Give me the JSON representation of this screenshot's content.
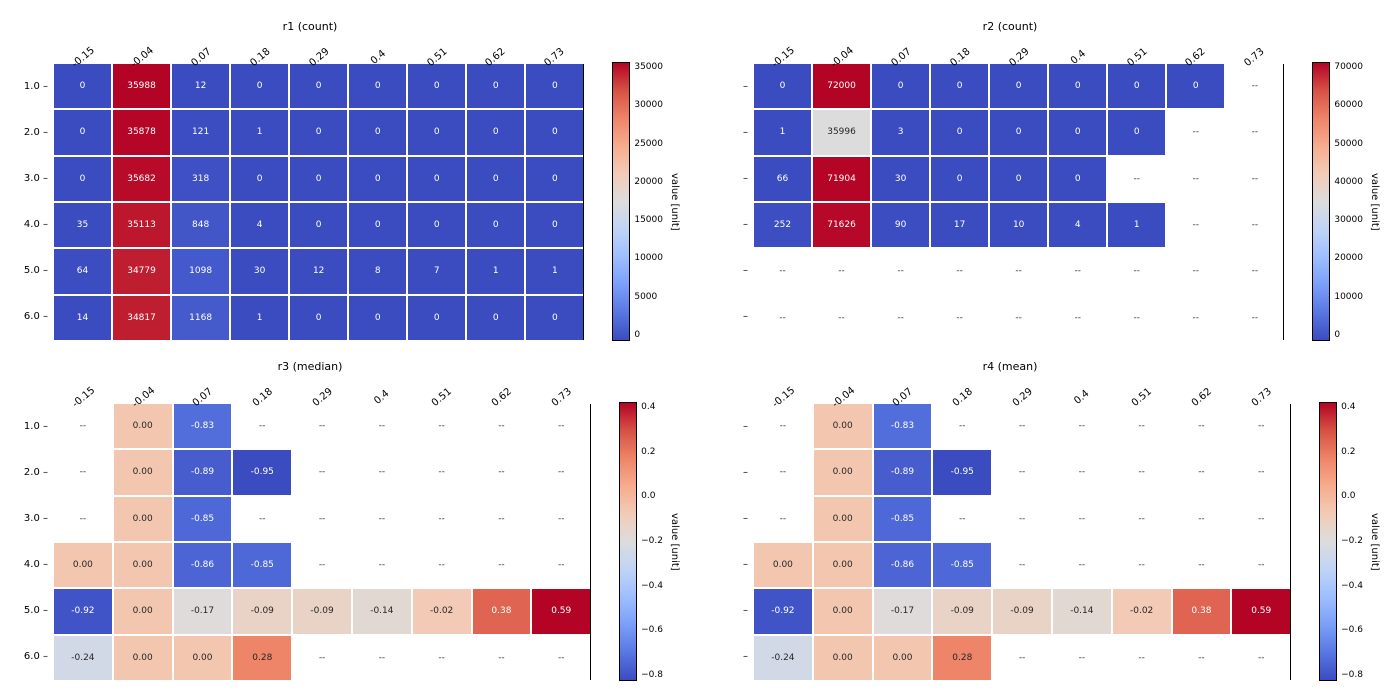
{
  "colormap": {
    "stops": [
      "#3b4cc0",
      "#5977e3",
      "#7b9ff9",
      "#9ebeff",
      "#c0d4f5",
      "#dddcdc",
      "#f2cbb7",
      "#f7ac8e",
      "#ee8468",
      "#d65244",
      "#b40426"
    ],
    "nan": "--"
  },
  "panels": [
    {
      "id": "r1",
      "title": "r1 (count)",
      "xticks": [
        "-0.15",
        "-0.04",
        "0.07",
        "0.18",
        "0.29",
        "0.4",
        "0.51",
        "0.62",
        "0.73"
      ],
      "yticks": [
        "1.0",
        "2.0",
        "3.0",
        "4.0",
        "5.0",
        "6.0"
      ],
      "rows": 6,
      "cols": 9,
      "vmin": 0,
      "vmax": 35988,
      "fmt": "int",
      "cbar_ticks": [
        "35000",
        "30000",
        "25000",
        "20000",
        "15000",
        "10000",
        "5000",
        "0"
      ],
      "cbar_label": "value [unit]",
      "data": [
        [
          0,
          35988,
          12,
          0,
          0,
          0,
          0,
          0,
          0
        ],
        [
          0,
          35878,
          121,
          1,
          0,
          0,
          0,
          0,
          0
        ],
        [
          0,
          35682,
          318,
          0,
          0,
          0,
          0,
          0,
          0
        ],
        [
          35,
          35113,
          848,
          4,
          0,
          0,
          0,
          0,
          0
        ],
        [
          64,
          34779,
          1098,
          30,
          12,
          8,
          7,
          1,
          1
        ],
        [
          14,
          34817,
          1168,
          1,
          0,
          0,
          0,
          0,
          0
        ]
      ]
    },
    {
      "id": "r2",
      "title": "r2 (count)",
      "xticks": [
        "-0.15",
        "-0.04",
        "0.07",
        "0.18",
        "0.29",
        "0.4",
        "0.51",
        "0.62",
        "0.73"
      ],
      "yticks": [
        "",
        "",
        "",
        "",
        "",
        ""
      ],
      "rows": 6,
      "cols": 9,
      "vmin": 0,
      "vmax": 72000,
      "fmt": "int",
      "cbar_ticks": [
        "70000",
        "60000",
        "50000",
        "40000",
        "30000",
        "20000",
        "10000",
        "0"
      ],
      "cbar_label": "value [unit]",
      "data": [
        [
          0,
          72000,
          0,
          0,
          0,
          0,
          0,
          0,
          null
        ],
        [
          1,
          35996,
          3,
          0,
          0,
          0,
          0,
          null,
          null
        ],
        [
          66,
          71904,
          30,
          0,
          0,
          0,
          null,
          null,
          null
        ],
        [
          252,
          71626,
          90,
          17,
          10,
          4,
          1,
          null,
          null
        ],
        [
          null,
          null,
          null,
          null,
          null,
          null,
          null,
          null,
          null
        ],
        [
          null,
          null,
          null,
          null,
          null,
          null,
          null,
          null,
          null
        ]
      ]
    },
    {
      "id": "r3",
      "title": "r3 (median)",
      "xticks": [
        "-0.15",
        "-0.04",
        "0.07",
        "0.18",
        "0.29",
        "0.4",
        "0.51",
        "0.62",
        "0.73"
      ],
      "yticks": [
        "1.0",
        "2.0",
        "3.0",
        "4.0",
        "5.0",
        "6.0"
      ],
      "rows": 6,
      "cols": 9,
      "vmin": -0.95,
      "vmax": 0.59,
      "fmt": "float2",
      "cbar_ticks": [
        "0.4",
        "0.2",
        "0.0",
        "−0.2",
        "−0.4",
        "−0.6",
        "−0.8"
      ],
      "cbar_label": "value [unit]",
      "data": [
        [
          null,
          0.0,
          -0.83,
          null,
          null,
          null,
          null,
          null,
          null
        ],
        [
          null,
          0.0,
          -0.89,
          -0.95,
          null,
          null,
          null,
          null,
          null
        ],
        [
          null,
          0.0,
          -0.85,
          null,
          null,
          null,
          null,
          null,
          null
        ],
        [
          0.0,
          0.0,
          -0.86,
          -0.85,
          null,
          null,
          null,
          null,
          null
        ],
        [
          -0.92,
          0.0,
          -0.17,
          -0.09,
          -0.09,
          -0.14,
          -0.02,
          0.38,
          0.59
        ],
        [
          -0.24,
          0.0,
          0.0,
          0.28,
          null,
          null,
          null,
          null,
          null
        ]
      ]
    },
    {
      "id": "r4",
      "title": "r4 (mean)",
      "xticks": [
        "-0.15",
        "-0.04",
        "0.07",
        "0.18",
        "0.29",
        "0.4",
        "0.51",
        "0.62",
        "0.73"
      ],
      "yticks": [
        "",
        "",
        "",
        "",
        "",
        ""
      ],
      "rows": 6,
      "cols": 9,
      "vmin": -0.95,
      "vmax": 0.59,
      "fmt": "float2",
      "cbar_ticks": [
        "0.4",
        "0.2",
        "0.0",
        "−0.2",
        "−0.4",
        "−0.6",
        "−0.8"
      ],
      "cbar_label": "value [unit]",
      "data": [
        [
          null,
          0.0,
          -0.83,
          null,
          null,
          null,
          null,
          null,
          null
        ],
        [
          null,
          0.0,
          -0.89,
          -0.95,
          null,
          null,
          null,
          null,
          null
        ],
        [
          null,
          0.0,
          -0.85,
          null,
          null,
          null,
          null,
          null,
          null
        ],
        [
          0.0,
          0.0,
          -0.86,
          -0.85,
          null,
          null,
          null,
          null,
          null
        ],
        [
          -0.92,
          0.0,
          -0.17,
          -0.09,
          -0.09,
          -0.14,
          -0.02,
          0.38,
          0.59
        ],
        [
          -0.24,
          0.0,
          0.0,
          0.28,
          null,
          null,
          null,
          null,
          null
        ]
      ]
    }
  ]
}
